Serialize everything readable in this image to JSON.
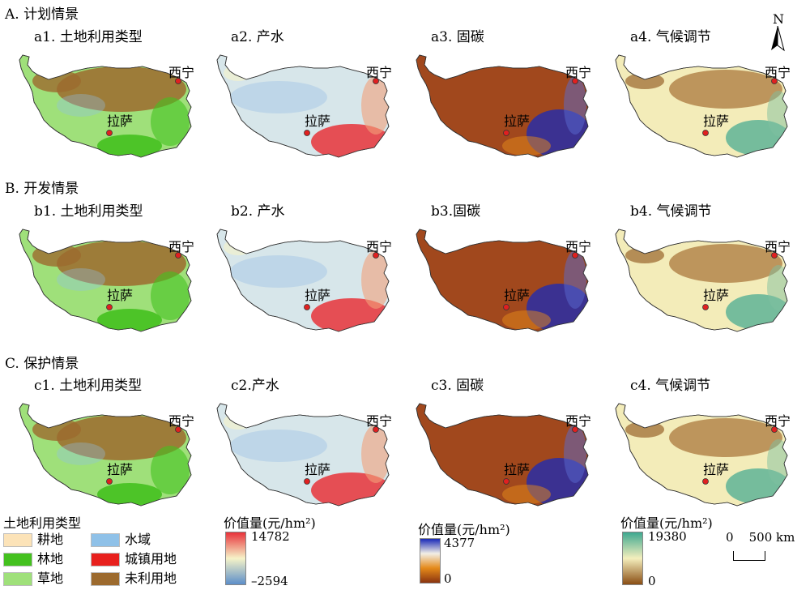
{
  "scenarios": [
    {
      "title": "A. 计划情景",
      "panels": [
        "a1. 土地利用类型",
        "a2. 产水",
        "a3. 固碳",
        "a4. 气候调节"
      ]
    },
    {
      "title": "B. 开发情景",
      "panels": [
        "b1. 土地利用类型",
        "b2. 产水",
        "b3.固碳",
        "b4. 气候调节"
      ]
    },
    {
      "title": "C. 保护情景",
      "panels": [
        "c1. 土地利用类型",
        "c2.产水",
        "c3. 固碳",
        "c4. 气候调节"
      ]
    }
  ],
  "cities": {
    "xining": "西宁",
    "lhasa": "拉萨"
  },
  "north_label": "N",
  "legend": {
    "title": "土地利用类型",
    "items": [
      {
        "label": "耕地",
        "color": "#fce3b8"
      },
      {
        "label": "水域",
        "color": "#8fc1e8"
      },
      {
        "label": "林地",
        "color": "#44c11f"
      },
      {
        "label": "城镇用地",
        "color": "#e8201d"
      },
      {
        "label": "草地",
        "color": "#9fe07a"
      },
      {
        "label": "未利用地",
        "color": "#9c6a2e"
      }
    ]
  },
  "colorbars": [
    {
      "title": "价值量(元/hm²)",
      "max": "14782",
      "min": "–2594",
      "colors": [
        "#e8323a",
        "#f6f3c8",
        "#5c8ec9"
      ]
    },
    {
      "title": "价值量(元/hm²)",
      "max": "4377",
      "min": "0",
      "colors": [
        "#1a2ab8",
        "#f2efe6",
        "#e58a1a",
        "#8a3410"
      ]
    },
    {
      "title": "价值量(元/hm²)",
      "max": "19380",
      "min": "0",
      "colors": [
        "#3ea890",
        "#f4efbd",
        "#8a4e14"
      ]
    }
  ],
  "scalebar": {
    "label": "0    500 km"
  },
  "fills": {
    "landuse": "#9fe07a",
    "water": "#d7e6ea",
    "carbon": "#a1481d",
    "climate": "#f3ecb9"
  }
}
